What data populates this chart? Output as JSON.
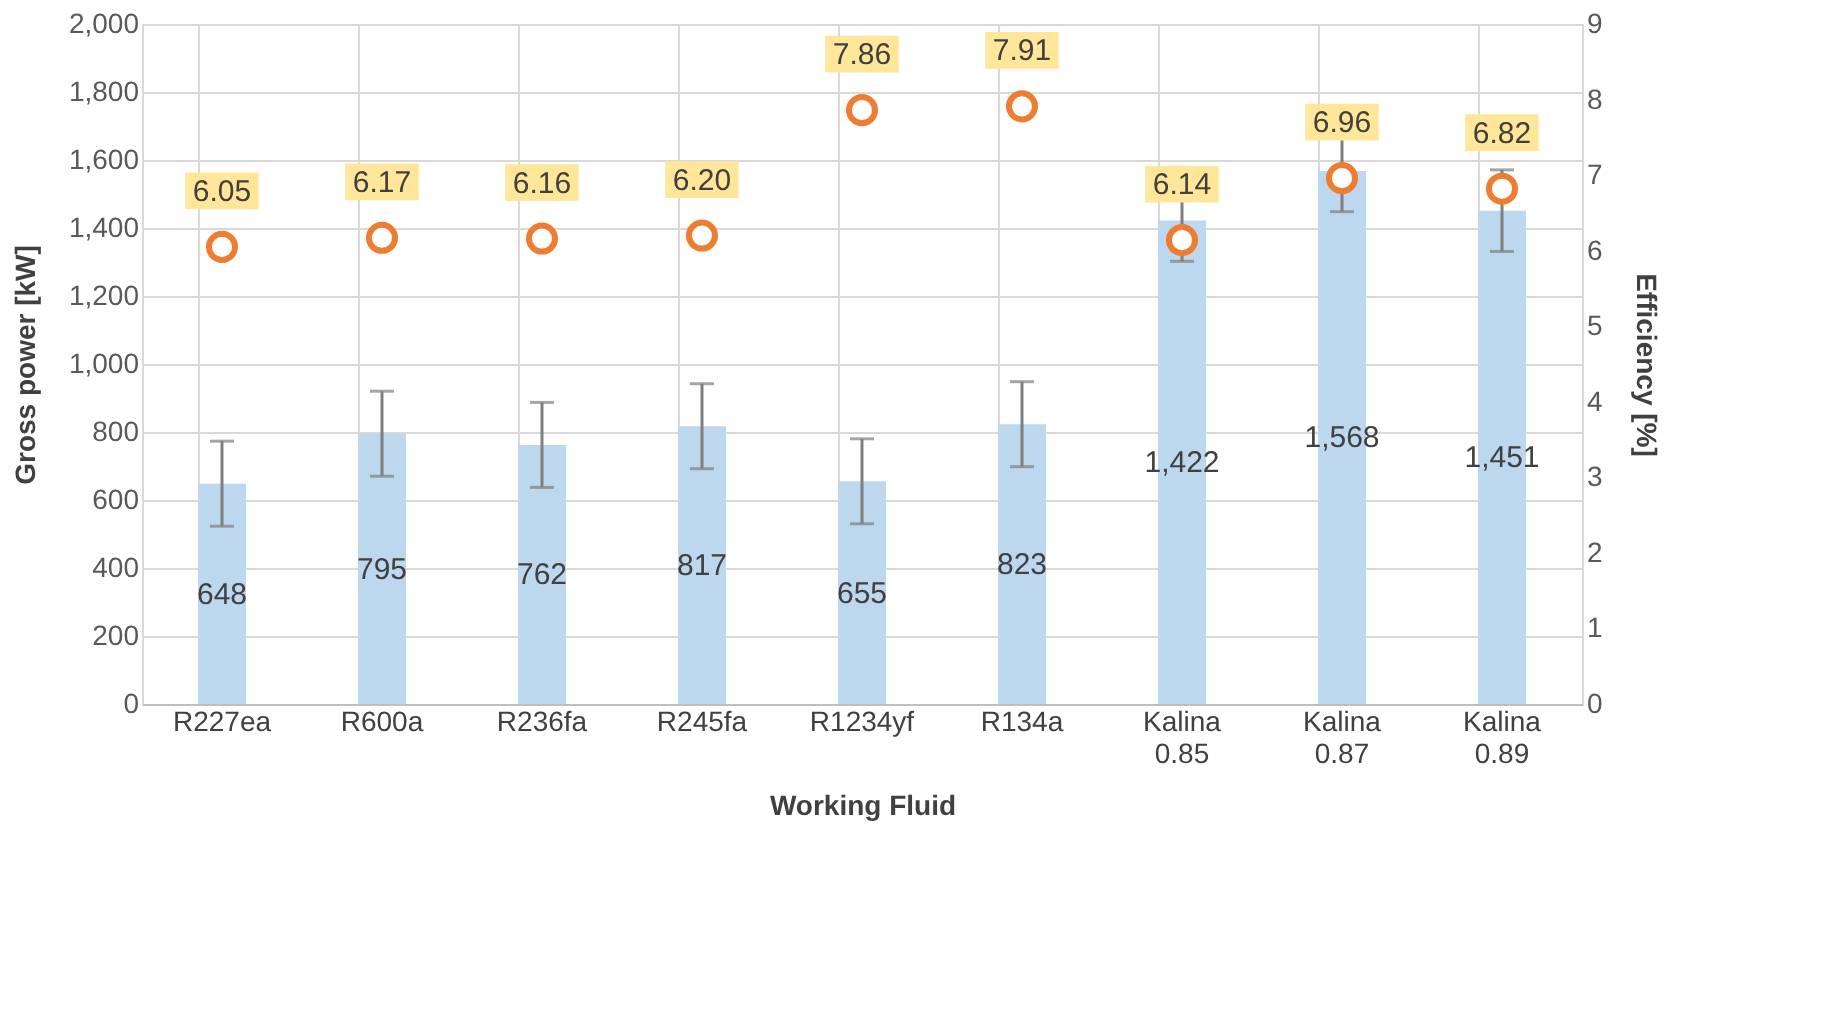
{
  "chart_data": {
    "type": "bar",
    "xlabel": "Working Fluid",
    "ylabel": "Gross power [kW]",
    "y2label": "Efficiency [%]",
    "categories": [
      "R227ea",
      "R600a",
      "R236fa",
      "R245fa",
      "R1234yf",
      "R134a",
      "Kalina 0.85",
      "Kalina 0.87",
      "Kalina 0.89"
    ],
    "series": [
      {
        "color": "#bdd7ee",
        "values": [
          648,
          795,
          762,
          817,
          655,
          823,
          1422,
          1568,
          1451
        ],
        "errors": [
          125,
          125,
          125,
          125,
          125,
          125,
          120,
          120,
          120
        ],
        "value_labels": [
          "648",
          "795",
          "762",
          "817",
          "655",
          "823",
          "1,422",
          "1,568",
          "1,451"
        ]
      },
      {
        "type": "scatter",
        "axis": "y2",
        "color": "#ed7d31",
        "marker": "circle",
        "values": [
          6.05,
          6.17,
          6.16,
          6.2,
          7.86,
          7.91,
          6.14,
          6.96,
          6.82
        ],
        "value_labels": [
          "6.05",
          "6.17",
          "6.16",
          "6.20",
          "7.86",
          "7.91",
          "6.14",
          "6.96",
          "6.82"
        ]
      }
    ],
    "ylim": [
      0,
      2000
    ],
    "yticks": [
      0,
      200,
      400,
      600,
      800,
      {
        "value": 1000,
        "label": "1,000"
      },
      {
        "value": 1200,
        "label": "1,200"
      },
      {
        "value": 1400,
        "label": "1,400"
      },
      {
        "value": 1600,
        "label": "1,600"
      },
      {
        "value": 1800,
        "label": "1,800"
      },
      {
        "value": 2000,
        "label": "2,000"
      }
    ],
    "y2lim": [
      0,
      9
    ],
    "y2ticks": [
      0,
      1,
      2,
      3,
      4,
      5,
      6,
      7,
      8,
      9
    ],
    "grid": true,
    "legend": false,
    "data_labels": true
  }
}
